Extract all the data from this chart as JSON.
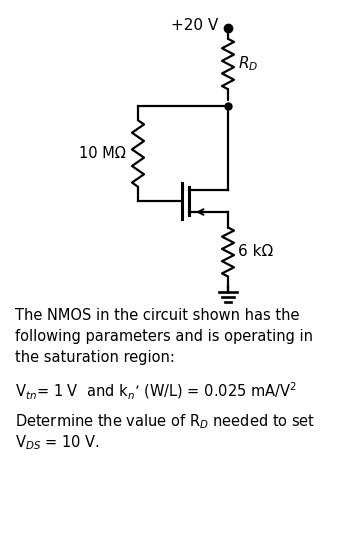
{
  "bg_color": "#ffffff",
  "fig_width": 3.5,
  "fig_height": 5.38,
  "dpi": 100,
  "vdd_label": "+20 V",
  "rd_label": "$R_D$",
  "rg_label": "10 MΩ",
  "rs_label": "6 kΩ",
  "text_lines": [
    "The NMOS in the circuit shown has the",
    "following parameters and is operating in",
    "the saturation region:",
    "",
    "V$_{tn}$= 1 V  and k$_n$’ (W/L) = 0.025 mA/V$^2$",
    "",
    "Determine the value of R$_D$ needed to set",
    "V$_{DS}$ = 10 V."
  ],
  "lw": 1.6
}
